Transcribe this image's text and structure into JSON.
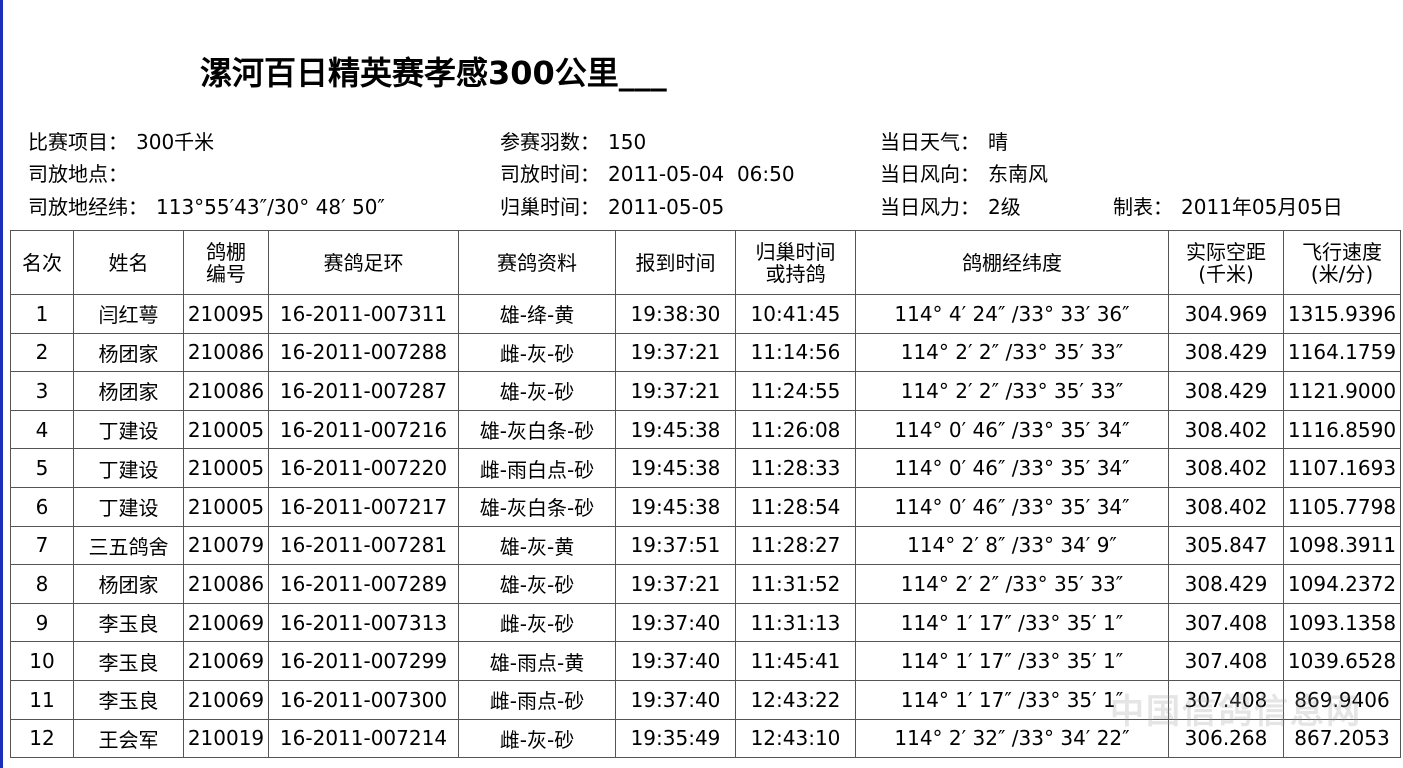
{
  "header": {
    "title": "漯河百日精英赛孝感300公里___"
  },
  "info": [
    [
      {
        "label": "比赛项目：",
        "value": "300千米"
      },
      {
        "label": "参赛羽数：",
        "value": "150"
      },
      {
        "label": "当日天气：",
        "value": "晴"
      }
    ],
    [
      {
        "label": "司放地点："
      },
      {
        "label": "司放时间：",
        "value": "2011-05-04  06:50"
      },
      {
        "label": "当日风向：",
        "value": "东南风"
      }
    ],
    [
      {
        "label": "司放地经纬：",
        "value": "113°55′43″/30° 48′ 50″"
      },
      {
        "label": "归巢时间：",
        "value": "2011-05-05"
      },
      {
        "label": "当日风力：",
        "value": "2级"
      },
      {
        "label": "制表：",
        "value": "2011年05月05日"
      }
    ]
  ],
  "table": {
    "headers": [
      [
        "名次"
      ],
      [
        "姓名"
      ],
      [
        "鸽棚",
        "编号"
      ],
      [
        "赛鸽足环"
      ],
      [
        "赛鸽资料"
      ],
      [
        "报到时间"
      ],
      [
        "归巢时间",
        "或持鸽"
      ],
      [
        "鸽棚经纬度"
      ],
      [
        "实际空距",
        "(千米)"
      ],
      [
        "飞行速度",
        "(米/分)"
      ]
    ],
    "rows": [
      [
        "1",
        "闫红萼",
        "210095",
        "16-2011-007311",
        "雄-绛-黄",
        "19:38:30",
        "10:41:45",
        "114° 4′ 24″ /33° 33′ 36″",
        "304.969",
        "1315.9396"
      ],
      [
        "2",
        "杨团家",
        "210086",
        "16-2011-007288",
        "雌-灰-砂",
        "19:37:21",
        "11:14:56",
        "114° 2′ 2″ /33° 35′ 33″",
        "308.429",
        "1164.1759"
      ],
      [
        "3",
        "杨团家",
        "210086",
        "16-2011-007287",
        "雄-灰-砂",
        "19:37:21",
        "11:24:55",
        "114° 2′ 2″ /33° 35′ 33″",
        "308.429",
        "1121.9000"
      ],
      [
        "4",
        "丁建设",
        "210005",
        "16-2011-007216",
        "雄-灰白条-砂",
        "19:45:38",
        "11:26:08",
        "114° 0′ 46″ /33° 35′ 34″",
        "308.402",
        "1116.8590"
      ],
      [
        "5",
        "丁建设",
        "210005",
        "16-2011-007220",
        "雌-雨白点-砂",
        "19:45:38",
        "11:28:33",
        "114° 0′ 46″ /33° 35′ 34″",
        "308.402",
        "1107.1693"
      ],
      [
        "6",
        "丁建设",
        "210005",
        "16-2011-007217",
        "雄-灰白条-砂",
        "19:45:38",
        "11:28:54",
        "114° 0′ 46″ /33° 35′ 34″",
        "308.402",
        "1105.7798"
      ],
      [
        "7",
        "三五鸽舍",
        "210079",
        "16-2011-007281",
        "雄-灰-黄",
        "19:37:51",
        "11:28:27",
        "114° 2′ 8″ /33° 34′ 9″",
        "305.847",
        "1098.3911"
      ],
      [
        "8",
        "杨团家",
        "210086",
        "16-2011-007289",
        "雄-灰-砂",
        "19:37:21",
        "11:31:52",
        "114° 2′ 2″ /33° 35′ 33″",
        "308.429",
        "1094.2372"
      ],
      [
        "9",
        "李玉良",
        "210069",
        "16-2011-007313",
        "雌-灰-砂",
        "19:37:40",
        "11:31:13",
        "114° 1′ 17″ /33° 35′ 1″",
        "307.408",
        "1093.1358"
      ],
      [
        "10",
        "李玉良",
        "210069",
        "16-2011-007299",
        "雄-雨点-黄",
        "19:37:40",
        "11:45:41",
        "114° 1′ 17″ /33° 35′ 1″",
        "307.408",
        "1039.6528"
      ],
      [
        "11",
        "李玉良",
        "210069",
        "16-2011-007300",
        "雌-雨点-砂",
        "19:37:40",
        "12:43:22",
        "114° 1′ 17″ /33° 35′ 1″",
        "307.408",
        "869.9406"
      ],
      [
        "12",
        "王会军",
        "210019",
        "16-2011-007214",
        "雌-灰-砂",
        "19:35:49",
        "12:43:10",
        "114° 2′ 32″ /33° 34′ 22″",
        "306.268",
        "867.2053"
      ]
    ]
  },
  "watermark": "中国信鸽信息网"
}
